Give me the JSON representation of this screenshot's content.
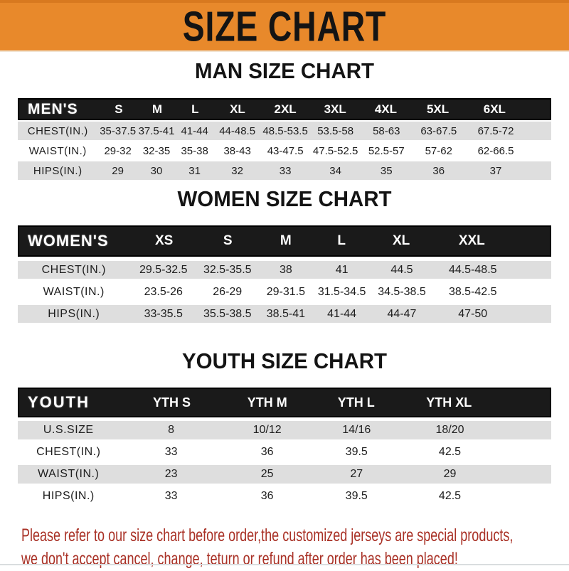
{
  "banner": {
    "title": "SIZE CHART"
  },
  "colors": {
    "orange": "#E8892B",
    "orange_dark": "#D8791F",
    "bar_black": "#1A1A1A",
    "row_shade": "#DEDEDE",
    "footer_red": "#A93126",
    "heading_black": "#141414"
  },
  "chart_data": [
    {
      "type": "table",
      "title": "MAN SIZE CHART",
      "header_label": "MEN'S",
      "columns": [
        "S",
        "M",
        "L",
        "XL",
        "2XL",
        "3XL",
        "4XL",
        "5XL",
        "6XL"
      ],
      "rows": [
        {
          "label": "CHEST(IN.)",
          "values": [
            "35-37.5",
            "37.5-41",
            "41-44",
            "44-48.5",
            "48.5-53.5",
            "53.5-58",
            "58-63",
            "63-67.5",
            "67.5-72"
          ]
        },
        {
          "label": "WAIST(IN.)",
          "values": [
            "29-32",
            "32-35",
            "35-38",
            "38-43",
            "43-47.5",
            "47.5-52.5",
            "52.5-57",
            "57-62",
            "62-66.5"
          ]
        },
        {
          "label": "HIPS(IN.)",
          "values": [
            "29",
            "30",
            "31",
            "32",
            "33",
            "34",
            "35",
            "36",
            "37"
          ]
        }
      ]
    },
    {
      "type": "table",
      "title": "WOMEN SIZE CHART",
      "header_label": "WOMEN'S",
      "columns": [
        "XS",
        "S",
        "M",
        "L",
        "XL",
        "XXL"
      ],
      "rows": [
        {
          "label": "CHEST(IN.)",
          "values": [
            "29.5-32.5",
            "32.5-35.5",
            "38",
            "41",
            "44.5",
            "44.5-48.5"
          ]
        },
        {
          "label": "WAIST(IN.)",
          "values": [
            "23.5-26",
            "26-29",
            "29-31.5",
            "31.5-34.5",
            "34.5-38.5",
            "38.5-42.5"
          ]
        },
        {
          "label": "HIPS(IN.)",
          "values": [
            "33-35.5",
            "35.5-38.5",
            "38.5-41",
            "41-44",
            "44-47",
            "47-50"
          ]
        }
      ]
    },
    {
      "type": "table",
      "title": "YOUTH SIZE CHART",
      "header_label": "YOUTH",
      "columns": [
        "YTH S",
        "YTH M",
        "YTH L",
        "YTH XL"
      ],
      "rows": [
        {
          "label": "U.S.SIZE",
          "values": [
            "8",
            "10/12",
            "14/16",
            "18/20"
          ]
        },
        {
          "label": "CHEST(IN.)",
          "values": [
            "33",
            "36",
            "39.5",
            "42.5"
          ]
        },
        {
          "label": "WAIST(IN.)",
          "values": [
            "23",
            "25",
            "27",
            "29"
          ]
        },
        {
          "label": "HIPS(IN.)",
          "values": [
            "33",
            "36",
            "39.5",
            "42.5"
          ]
        }
      ]
    }
  ],
  "footer": {
    "line1": "Please refer to our size chart before order,the customized jerseys are special products,",
    "line2": "we don't accept cancel, change, teturn or refund after order has been placed!"
  }
}
